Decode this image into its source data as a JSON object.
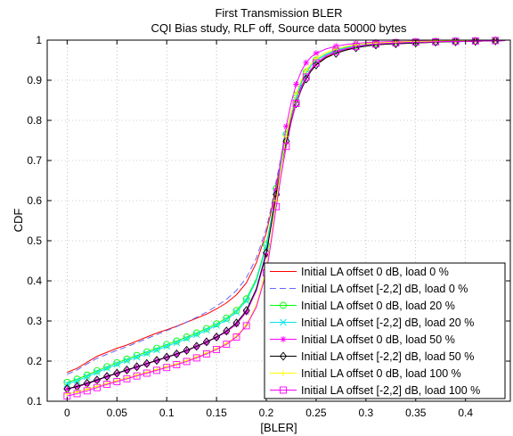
{
  "chart_data": {
    "type": "line",
    "title": "First Transmission BLER",
    "subtitle": "CQI Bias study, RLF off, Source data 50000 bytes",
    "xlabel": "[BLER]",
    "ylabel": "CDF",
    "xlim": [
      -0.02,
      0.445
    ],
    "ylim": [
      0.1,
      1.0
    ],
    "xticks": [
      0,
      0.05,
      0.1,
      0.15,
      0.2,
      0.25,
      0.3,
      0.35,
      0.4
    ],
    "xtick_labels": [
      "0",
      "0.05",
      "0.1",
      "0.15",
      "0.2",
      "0.25",
      "0.3",
      "0.35",
      "0.4"
    ],
    "yticks": [
      0.1,
      0.2,
      0.3,
      0.4,
      0.5,
      0.6,
      0.7,
      0.8,
      0.9,
      1.0
    ],
    "ytick_labels": [
      "0.1",
      "0.2",
      "0.3",
      "0.4",
      "0.5",
      "0.6",
      "0.7",
      "0.8",
      "0.9",
      "1"
    ],
    "grid": true,
    "legend_position": "lower-right",
    "x": [
      0.0,
      0.01,
      0.02,
      0.03,
      0.04,
      0.05,
      0.06,
      0.07,
      0.08,
      0.09,
      0.1,
      0.11,
      0.12,
      0.13,
      0.14,
      0.15,
      0.16,
      0.17,
      0.18,
      0.19,
      0.2,
      0.205,
      0.21,
      0.215,
      0.22,
      0.225,
      0.23,
      0.235,
      0.24,
      0.245,
      0.25,
      0.26,
      0.27,
      0.28,
      0.29,
      0.3,
      0.31,
      0.32,
      0.33,
      0.34,
      0.35,
      0.36,
      0.37,
      0.38,
      0.39,
      0.4,
      0.41,
      0.42,
      0.43,
      0.44
    ],
    "series": [
      {
        "name": "Initial LA offset 0 dB, load 0 %",
        "color": "#ff0000",
        "dash": "",
        "marker": "none",
        "values": [
          0.172,
          0.182,
          0.197,
          0.212,
          0.222,
          0.232,
          0.24,
          0.25,
          0.26,
          0.27,
          0.278,
          0.287,
          0.297,
          0.307,
          0.317,
          0.33,
          0.345,
          0.365,
          0.395,
          0.445,
          0.52,
          0.575,
          0.64,
          0.7,
          0.76,
          0.81,
          0.852,
          0.884,
          0.908,
          0.927,
          0.94,
          0.958,
          0.969,
          0.977,
          0.982,
          0.986,
          0.988,
          0.99,
          0.991,
          0.992,
          0.993,
          0.994,
          0.995,
          0.996,
          0.996,
          0.997,
          0.997,
          0.998,
          0.998,
          0.999
        ]
      },
      {
        "name": "Initial LA offset [-2,2] dB, load 0 %",
        "color": "#6666ff",
        "dash": "7,4",
        "marker": "none",
        "values": [
          0.167,
          0.178,
          0.193,
          0.207,
          0.217,
          0.227,
          0.236,
          0.246,
          0.256,
          0.266,
          0.276,
          0.286,
          0.297,
          0.309,
          0.322,
          0.337,
          0.354,
          0.376,
          0.408,
          0.457,
          0.53,
          0.585,
          0.65,
          0.71,
          0.765,
          0.813,
          0.854,
          0.886,
          0.91,
          0.928,
          0.942,
          0.96,
          0.97,
          0.978,
          0.983,
          0.987,
          0.989,
          0.99,
          0.991,
          0.992,
          0.993,
          0.994,
          0.995,
          0.996,
          0.996,
          0.997,
          0.997,
          0.998,
          0.998,
          0.999
        ]
      },
      {
        "name": "Initial LA offset 0 dB, load 20 %",
        "color": "#00ff00",
        "dash": "",
        "marker": "circle",
        "values": [
          0.147,
          0.155,
          0.165,
          0.176,
          0.186,
          0.196,
          0.205,
          0.214,
          0.223,
          0.232,
          0.241,
          0.25,
          0.26,
          0.27,
          0.281,
          0.293,
          0.307,
          0.326,
          0.355,
          0.405,
          0.49,
          0.555,
          0.63,
          0.7,
          0.765,
          0.82,
          0.862,
          0.895,
          0.92,
          0.937,
          0.95,
          0.965,
          0.975,
          0.982,
          0.987,
          0.99,
          0.992,
          0.993,
          0.994,
          0.995,
          0.996,
          0.996,
          0.997,
          0.997,
          0.998,
          0.998,
          0.998,
          0.999,
          0.999,
          0.999
        ]
      },
      {
        "name": "Initial LA offset [-2,2] dB, load 20 %",
        "color": "#00e5ee",
        "dash": "",
        "marker": "x",
        "values": [
          0.143,
          0.151,
          0.161,
          0.172,
          0.182,
          0.192,
          0.201,
          0.21,
          0.219,
          0.228,
          0.237,
          0.246,
          0.256,
          0.266,
          0.277,
          0.289,
          0.303,
          0.322,
          0.35,
          0.4,
          0.485,
          0.55,
          0.625,
          0.695,
          0.76,
          0.815,
          0.858,
          0.892,
          0.918,
          0.936,
          0.949,
          0.964,
          0.974,
          0.981,
          0.986,
          0.989,
          0.991,
          0.993,
          0.994,
          0.995,
          0.996,
          0.996,
          0.997,
          0.997,
          0.998,
          0.998,
          0.998,
          0.999,
          0.999,
          0.999
        ]
      },
      {
        "name": "Initial LA offset 0 dB, load 50 %",
        "color": "#ff00ff",
        "dash": "",
        "marker": "star",
        "values": [
          0.13,
          0.136,
          0.143,
          0.152,
          0.161,
          0.169,
          0.177,
          0.185,
          0.193,
          0.201,
          0.209,
          0.217,
          0.226,
          0.236,
          0.247,
          0.259,
          0.273,
          0.292,
          0.322,
          0.375,
          0.465,
          0.54,
          0.625,
          0.71,
          0.785,
          0.845,
          0.89,
          0.922,
          0.944,
          0.958,
          0.967,
          0.978,
          0.985,
          0.989,
          0.992,
          0.994,
          0.995,
          0.996,
          0.997,
          0.997,
          0.998,
          0.998,
          0.998,
          0.999,
          0.999,
          0.999,
          0.999,
          1.0,
          1.0,
          1.0
        ]
      },
      {
        "name": "Initial LA offset [-2,2] dB, load 50 %",
        "color": "#000000",
        "dash": "",
        "marker": "diamond",
        "values": [
          0.131,
          0.137,
          0.145,
          0.153,
          0.162,
          0.17,
          0.178,
          0.186,
          0.194,
          0.202,
          0.21,
          0.218,
          0.227,
          0.237,
          0.248,
          0.26,
          0.275,
          0.295,
          0.326,
          0.38,
          0.47,
          0.54,
          0.615,
          0.685,
          0.748,
          0.8,
          0.842,
          0.876,
          0.903,
          0.923,
          0.938,
          0.956,
          0.967,
          0.975,
          0.981,
          0.985,
          0.988,
          0.99,
          0.991,
          0.992,
          0.993,
          0.994,
          0.995,
          0.996,
          0.996,
          0.997,
          0.997,
          0.998,
          0.998,
          0.999
        ]
      },
      {
        "name": "Initial LA offset 0 dB, load 100 %",
        "color": "#ffff00",
        "dash": "",
        "marker": "plus",
        "values": [
          0.118,
          0.123,
          0.13,
          0.137,
          0.144,
          0.151,
          0.158,
          0.165,
          0.172,
          0.179,
          0.186,
          0.193,
          0.201,
          0.21,
          0.22,
          0.231,
          0.244,
          0.262,
          0.29,
          0.34,
          0.43,
          0.51,
          0.6,
          0.685,
          0.76,
          0.82,
          0.866,
          0.9,
          0.925,
          0.942,
          0.955,
          0.969,
          0.978,
          0.984,
          0.988,
          0.991,
          0.993,
          0.994,
          0.995,
          0.996,
          0.997,
          0.997,
          0.998,
          0.998,
          0.998,
          0.999,
          0.999,
          0.999,
          0.999,
          1.0
        ]
      },
      {
        "name": "Initial LA offset [-2,2] dB, load 100 %",
        "color": "#ff00ff",
        "dash": "",
        "marker": "square",
        "values": [
          0.113,
          0.119,
          0.126,
          0.134,
          0.142,
          0.149,
          0.156,
          0.163,
          0.17,
          0.177,
          0.184,
          0.191,
          0.199,
          0.208,
          0.218,
          0.229,
          0.242,
          0.26,
          0.288,
          0.335,
          0.42,
          0.5,
          0.585,
          0.665,
          0.735,
          0.795,
          0.842,
          0.88,
          0.908,
          0.928,
          0.943,
          0.961,
          0.972,
          0.979,
          0.984,
          0.988,
          0.99,
          0.992,
          0.993,
          0.994,
          0.995,
          0.995,
          0.996,
          0.997,
          0.997,
          0.997,
          0.998,
          0.998,
          0.999,
          0.999
        ]
      }
    ]
  }
}
